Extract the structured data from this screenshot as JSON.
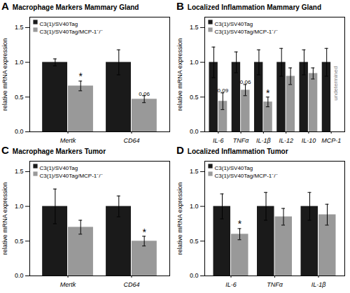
{
  "chart_data": [
    {
      "type": "bar",
      "panel_label": "A",
      "title": "Macrophage Markers Mammary Gland",
      "categories": [
        "Mertk",
        "CD64"
      ],
      "series": [
        {
          "name": "C3(1)/SV40Tag",
          "color": "#1a1a1a",
          "values": [
            1.0,
            1.0
          ],
          "errors": [
            0.05,
            0.18
          ]
        },
        {
          "name": "C3(1)/SV40Tag/MCP-1⁻/⁻",
          "color": "#999999",
          "values": [
            0.66,
            0.47
          ],
          "errors": [
            0.07,
            0.05
          ]
        }
      ],
      "annotations": [
        {
          "text": "*",
          "category": "Mertk",
          "series": "C3(1)/SV40Tag/MCP-1⁻/⁻",
          "y": 0.75
        },
        {
          "text": "0.06",
          "category": "CD64",
          "series": "C3(1)/SV40Tag/MCP-1⁻/⁻",
          "y": 0.52
        }
      ],
      "ylabel": "relative mRNA expression",
      "ylim": [
        0,
        1.65
      ],
      "yticks": [
        {
          "value": 0,
          "label": "0.0"
        },
        0.5,
        {
          "value": 1,
          "label": "1.0"
        },
        1.5
      ],
      "legend": "upper left"
    },
    {
      "type": "bar",
      "panel_label": "B",
      "title": "Localized Inflammation Mammary Gland",
      "categories": [
        "IL-6",
        "TNFα",
        "IL-1β",
        "IL-12",
        "IL-10",
        "MCP-1"
      ],
      "series": [
        {
          "name": "C3(1)/SV40Tag",
          "color": "#1a1a1a",
          "values": [
            1.0,
            1.0,
            1.0,
            1.0,
            1.0,
            1.0
          ],
          "errors": [
            0.22,
            0.15,
            0.18,
            0.2,
            0.18,
            0.2
          ]
        },
        {
          "name": "C3(1)/SV40Tag/MCP-1⁻/⁻",
          "color": "#999999",
          "values": [
            0.44,
            0.6,
            0.43,
            0.8,
            0.84,
            null
          ],
          "errors": [
            0.12,
            0.08,
            0.07,
            0.12,
            0.08,
            null
          ]
        }
      ],
      "annotations": [
        {
          "text": "0.09",
          "category": "IL-6",
          "series": "C3(1)/SV40Tag/MCP-1⁻/⁻",
          "y": 0.57
        },
        {
          "text": "0.06",
          "category": "TNFα",
          "series": "C3(1)/SV40Tag/MCP-1⁻/⁻",
          "y": 0.69
        },
        {
          "text": "*",
          "category": "IL-1β",
          "series": "C3(1)/SV40Tag/MCP-1⁻/⁻",
          "y": 0.51
        },
        {
          "text": "undetermined",
          "category": "MCP-1",
          "series": "C3(1)/SV40Tag",
          "y": 0.45,
          "orientation": "vertical",
          "color": "gray"
        }
      ],
      "ylabel": "relative mRNA expression",
      "ylim": [
        0,
        1.65
      ],
      "yticks": [
        {
          "value": 0,
          "label": "0.0"
        },
        0.5,
        {
          "value": 1,
          "label": "1.0"
        },
        1.5
      ],
      "legend": "upper left"
    },
    {
      "type": "bar",
      "panel_label": "C",
      "title": "Macrophage Markers Tumor",
      "categories": [
        "Mertk",
        "CD64"
      ],
      "series": [
        {
          "name": "C3(1)/SV40Tag",
          "color": "#1a1a1a",
          "values": [
            1.0,
            1.0
          ],
          "errors": [
            0.25,
            0.15
          ]
        },
        {
          "name": "C3(1)/SV40Tag/MCP-1⁻/⁻",
          "color": "#999999",
          "values": [
            0.7,
            0.5
          ],
          "errors": [
            0.1,
            0.07
          ]
        }
      ],
      "annotations": [
        {
          "text": "*",
          "category": "CD64",
          "series": "C3(1)/SV40Tag/MCP-1⁻/⁻",
          "y": 0.58
        }
      ],
      "ylabel": "relative mRNA expression",
      "ylim": [
        0,
        1.65
      ],
      "yticks": [
        {
          "value": 0,
          "label": "0.0"
        },
        0.5,
        {
          "value": 1,
          "label": "1.0"
        },
        1.5
      ],
      "legend": "upper left"
    },
    {
      "type": "bar",
      "panel_label": "D",
      "title": "Localized Inflammation Tumor",
      "categories": [
        "IL-6",
        "TNFα",
        "IL-1β"
      ],
      "series": [
        {
          "name": "C3(1)/SV40Tag",
          "color": "#1a1a1a",
          "values": [
            1.0,
            1.0,
            1.0
          ],
          "errors": [
            0.18,
            0.2,
            0.2
          ]
        },
        {
          "name": "C3(1)/SV40Tag/MCP-1⁻/⁻",
          "color": "#999999",
          "values": [
            0.6,
            0.85,
            0.88
          ],
          "errors": [
            0.08,
            0.12,
            0.15
          ]
        }
      ],
      "annotations": [
        {
          "text": "*",
          "category": "IL-6",
          "series": "C3(1)/SV40Tag/MCP-1⁻/⁻",
          "y": 0.7
        }
      ],
      "ylabel": "relative mRNA expression",
      "ylim": [
        0,
        1.65
      ],
      "yticks": [
        {
          "value": 0,
          "label": "0.0"
        },
        0.5,
        {
          "value": 1,
          "label": "1.0"
        },
        1.5
      ],
      "legend": "upper left"
    }
  ]
}
